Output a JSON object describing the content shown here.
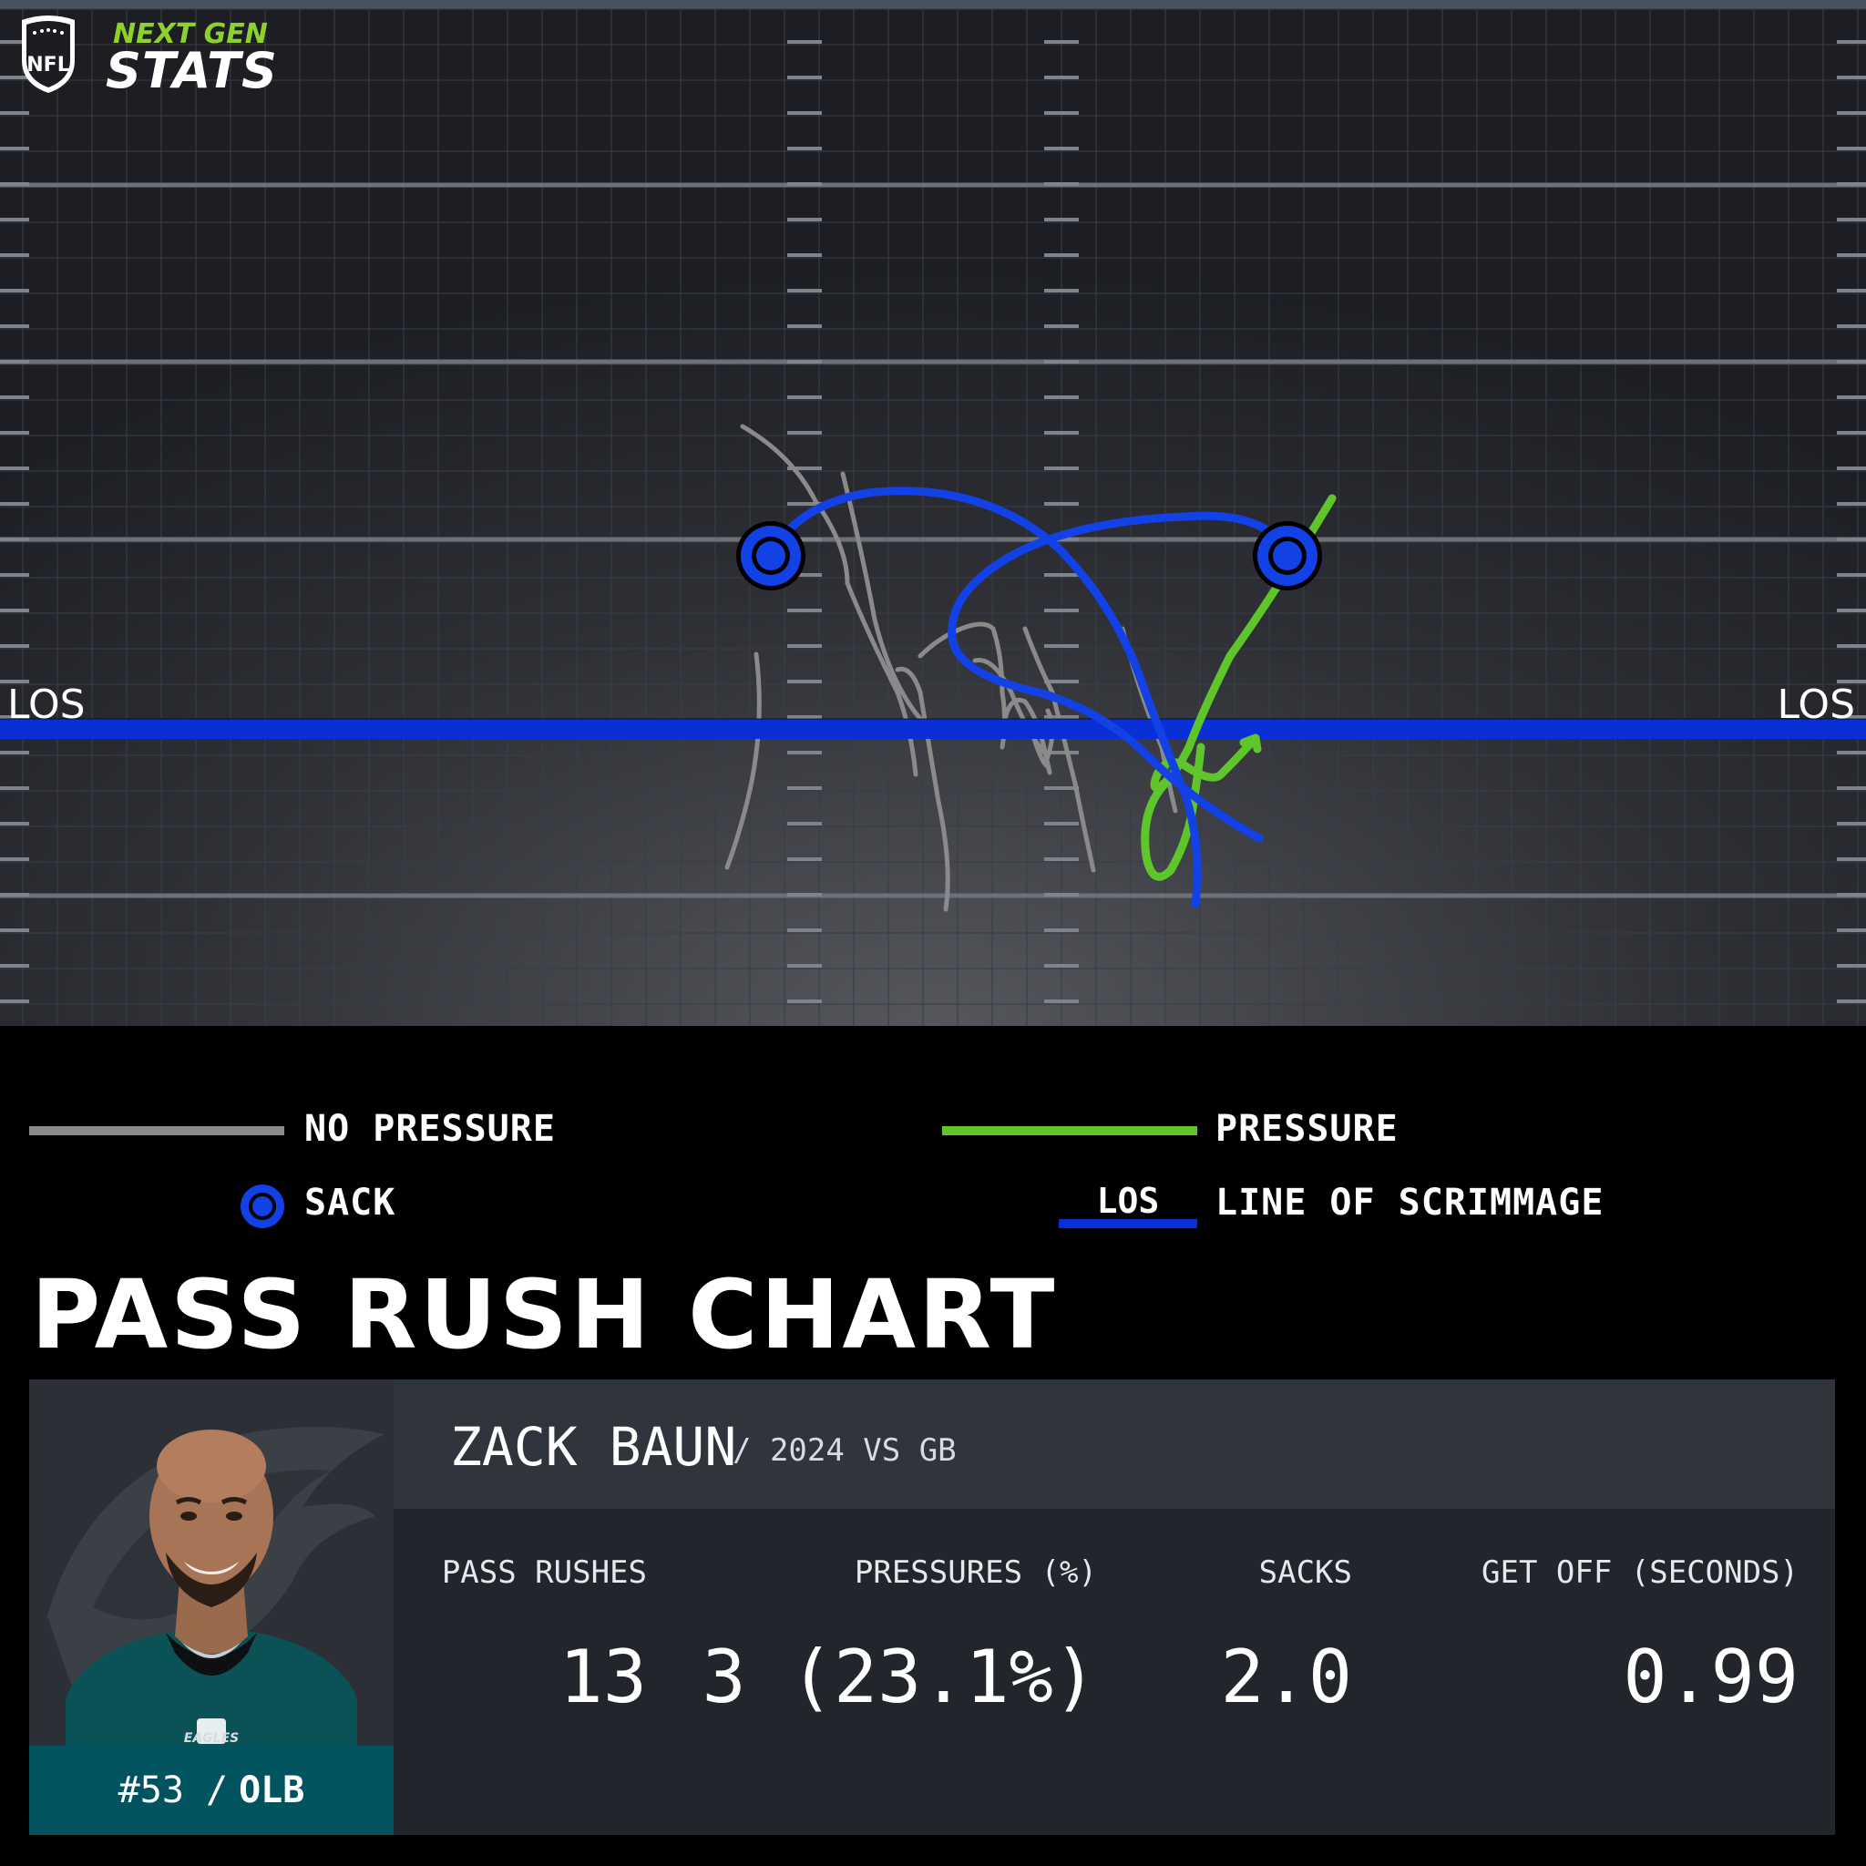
{
  "brand": {
    "line1": "NEXT GEN",
    "line2": "STATS",
    "logo_icon": "nfl-shield-icon"
  },
  "chart_data": {
    "type": "route-trace",
    "los_label": "LOS",
    "series": [
      {
        "name": "NO PRESSURE",
        "color": "#8a8a8a",
        "rush_count": 10
      },
      {
        "name": "PRESSURE",
        "color": "#5ec52a",
        "rush_count": 1
      },
      {
        "name": "SACK",
        "color": "#1241e6",
        "rush_count": 2
      }
    ],
    "sack_markers": 2
  },
  "legend": {
    "no_pressure": "NO PRESSURE",
    "pressure": "PRESSURE",
    "sack": "SACK",
    "los_short": "LOS",
    "los_long": "LINE OF SCRIMMAGE",
    "colors": {
      "no_pressure": "#8a8a8a",
      "pressure": "#5ec52a",
      "sack": "#1241e6",
      "los": "#0a2fd6"
    }
  },
  "title": "PASS RUSH CHART",
  "player": {
    "name": "ZACK BAUN",
    "subtitle": "/ 2024 VS GB",
    "number": "#53 /",
    "position": "OLB",
    "team_wordmark": "EAGLES"
  },
  "stats": [
    {
      "label": "PASS RUSHES",
      "value": "13"
    },
    {
      "label": "PRESSURES (%)",
      "value": "3 (23.1%)"
    },
    {
      "label": "SACKS",
      "value": "2.0"
    },
    {
      "label": "GET OFF (SECONDS)",
      "value": "0.99"
    }
  ]
}
